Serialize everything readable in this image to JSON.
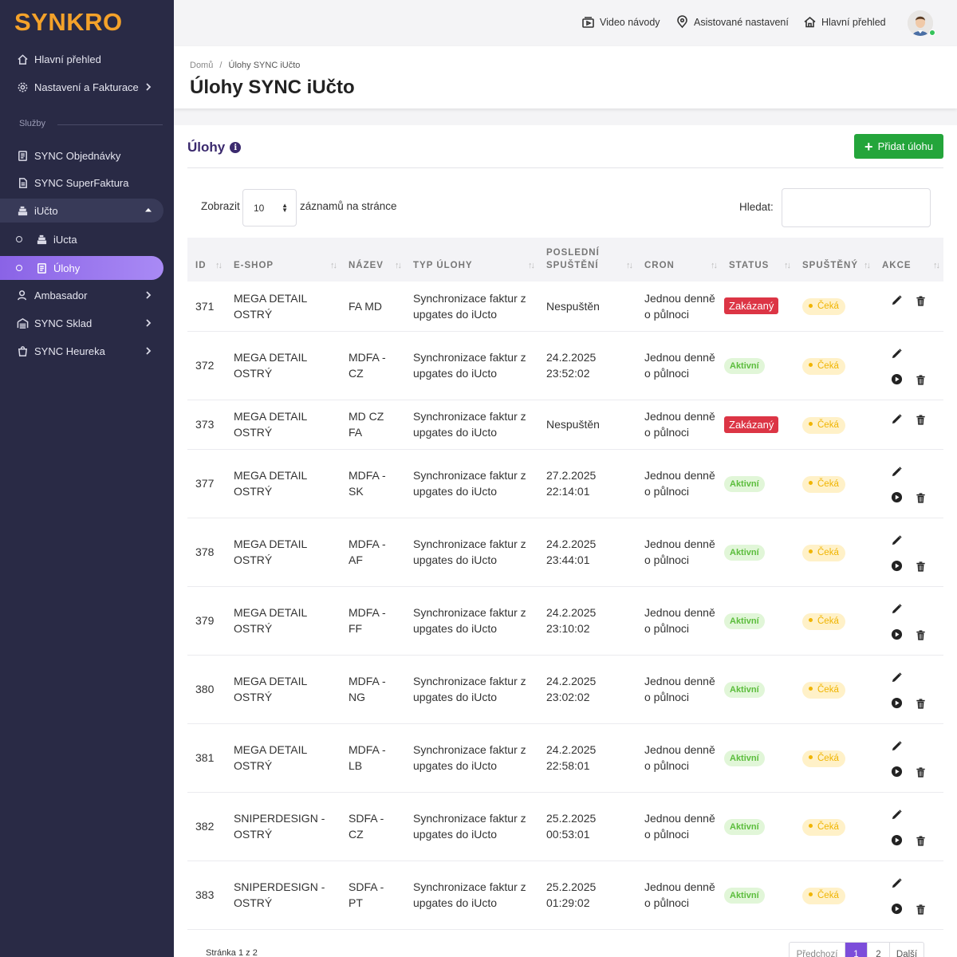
{
  "sidebar": {
    "logo": "SYNKRO",
    "section_label": "Služby",
    "items": [
      {
        "label": "Hlavní přehled"
      },
      {
        "label": "Nastavení a Fakturace"
      },
      {
        "label": "SYNC Objednávky"
      },
      {
        "label": "SYNC SuperFaktura"
      },
      {
        "label": "iUčto"
      },
      {
        "label": "iUcta"
      },
      {
        "label": "Úlohy"
      },
      {
        "label": "Ambasador"
      },
      {
        "label": "SYNC Sklad"
      },
      {
        "label": "SYNC Heureka"
      }
    ]
  },
  "topbar": {
    "video": "Video návody",
    "assisted": "Asistované nastavení",
    "overview": "Hlavní přehled"
  },
  "header": {
    "breadcrumb_home": "Domů",
    "breadcrumb_sep": "/",
    "breadcrumb_current": "Úlohy SYNC iUčto",
    "title": "Úlohy SYNC iUčto"
  },
  "card": {
    "title": "Úlohy",
    "add_button": "Přidat úlohu",
    "show_label": "Zobrazit",
    "page_size": "10",
    "per_page_label": "záznamů na stránce",
    "search_label": "Hledat:"
  },
  "table": {
    "headers": {
      "id": "ID",
      "eshop": "E-SHOP",
      "name": "NÁZEV",
      "type": "TYP ÚLOHY",
      "last_run_1": "POSLEDNÍ",
      "last_run_2": "SPUŠTĚNÍ",
      "cron": "CRON",
      "status": "STATUS",
      "running": "SPUŠTĚNÝ",
      "actions": "AKCE"
    },
    "rows": [
      {
        "id": "371",
        "eshop_1": "MEGA DETAIL",
        "eshop_2": "OSTRÝ",
        "name_1": "FA MD",
        "name_2": "",
        "type_1": "Synchronizace faktur z",
        "type_2": "upgates do iUcto",
        "last_1": "Nespuštěn",
        "last_2": "",
        "cron_1": "Jednou denně",
        "cron_2": "o půlnoci",
        "status": "Zakázaný",
        "status_kind": "disabled",
        "running": "Čeká"
      },
      {
        "id": "372",
        "eshop_1": "MEGA DETAIL",
        "eshop_2": "OSTRÝ",
        "name_1": "MDFA -",
        "name_2": "CZ",
        "type_1": "Synchronizace faktur z",
        "type_2": "upgates do iUcto",
        "last_1": "24.2.2025",
        "last_2": "23:52:02",
        "cron_1": "Jednou denně",
        "cron_2": "o půlnoci",
        "status": "Aktivní",
        "status_kind": "active",
        "running": "Čeká"
      },
      {
        "id": "373",
        "eshop_1": "MEGA DETAIL",
        "eshop_2": "OSTRÝ",
        "name_1": "MD CZ",
        "name_2": "FA",
        "type_1": "Synchronizace faktur z",
        "type_2": "upgates do iUcto",
        "last_1": "Nespuštěn",
        "last_2": "",
        "cron_1": "Jednou denně",
        "cron_2": "o půlnoci",
        "status": "Zakázaný",
        "status_kind": "disabled",
        "running": "Čeká"
      },
      {
        "id": "377",
        "eshop_1": "MEGA DETAIL",
        "eshop_2": "OSTRÝ",
        "name_1": "MDFA -",
        "name_2": "SK",
        "type_1": "Synchronizace faktur z",
        "type_2": "upgates do iUcto",
        "last_1": "27.2.2025",
        "last_2": "22:14:01",
        "cron_1": "Jednou denně",
        "cron_2": "o půlnoci",
        "status": "Aktivní",
        "status_kind": "active",
        "running": "Čeká"
      },
      {
        "id": "378",
        "eshop_1": "MEGA DETAIL",
        "eshop_2": "OSTRÝ",
        "name_1": "MDFA -",
        "name_2": "AF",
        "type_1": "Synchronizace faktur z",
        "type_2": "upgates do iUcto",
        "last_1": "24.2.2025",
        "last_2": "23:44:01",
        "cron_1": "Jednou denně",
        "cron_2": "o půlnoci",
        "status": "Aktivní",
        "status_kind": "active",
        "running": "Čeká"
      },
      {
        "id": "379",
        "eshop_1": "MEGA DETAIL",
        "eshop_2": "OSTRÝ",
        "name_1": "MDFA -",
        "name_2": "FF",
        "type_1": "Synchronizace faktur z",
        "type_2": "upgates do iUcto",
        "last_1": "24.2.2025",
        "last_2": "23:10:02",
        "cron_1": "Jednou denně",
        "cron_2": "o půlnoci",
        "status": "Aktivní",
        "status_kind": "active",
        "running": "Čeká"
      },
      {
        "id": "380",
        "eshop_1": "MEGA DETAIL",
        "eshop_2": "OSTRÝ",
        "name_1": "MDFA -",
        "name_2": "NG",
        "type_1": "Synchronizace faktur z",
        "type_2": "upgates do iUcto",
        "last_1": "24.2.2025",
        "last_2": "23:02:02",
        "cron_1": "Jednou denně",
        "cron_2": "o půlnoci",
        "status": "Aktivní",
        "status_kind": "active",
        "running": "Čeká"
      },
      {
        "id": "381",
        "eshop_1": "MEGA DETAIL",
        "eshop_2": "OSTRÝ",
        "name_1": "MDFA -",
        "name_2": "LB",
        "type_1": "Synchronizace faktur z",
        "type_2": "upgates do iUcto",
        "last_1": "24.2.2025",
        "last_2": "22:58:01",
        "cron_1": "Jednou denně",
        "cron_2": "o půlnoci",
        "status": "Aktivní",
        "status_kind": "active",
        "running": "Čeká"
      },
      {
        "id": "382",
        "eshop_1": "SNIPERDESIGN -",
        "eshop_2": "OSTRÝ",
        "name_1": "SDFA -",
        "name_2": "CZ",
        "type_1": "Synchronizace faktur z",
        "type_2": "upgates do iUcto",
        "last_1": "25.2.2025",
        "last_2": "00:53:01",
        "cron_1": "Jednou denně",
        "cron_2": "o půlnoci",
        "status": "Aktivní",
        "status_kind": "active",
        "running": "Čeká"
      },
      {
        "id": "383",
        "eshop_1": "SNIPERDESIGN -",
        "eshop_2": "OSTRÝ",
        "name_1": "SDFA -",
        "name_2": "PT",
        "type_1": "Synchronizace faktur z",
        "type_2": "upgates do iUcto",
        "last_1": "25.2.2025",
        "last_2": "01:29:02",
        "cron_1": "Jednou denně",
        "cron_2": "o půlnoci",
        "status": "Aktivní",
        "status_kind": "active",
        "running": "Čeká"
      }
    ]
  },
  "pagination": {
    "info": "Stránka 1 z 2",
    "prev": "Předchozí",
    "page1": "1",
    "page2": "2",
    "next": "Další"
  },
  "colors": {
    "sidebar_bg": "#292a45",
    "logo": "#f4a22a",
    "accent": "#8a63e6",
    "add_button": "#24a53b",
    "status_disabled": "#dc3545",
    "status_active": "#5bbd3c",
    "waiting": "#f0b400"
  }
}
